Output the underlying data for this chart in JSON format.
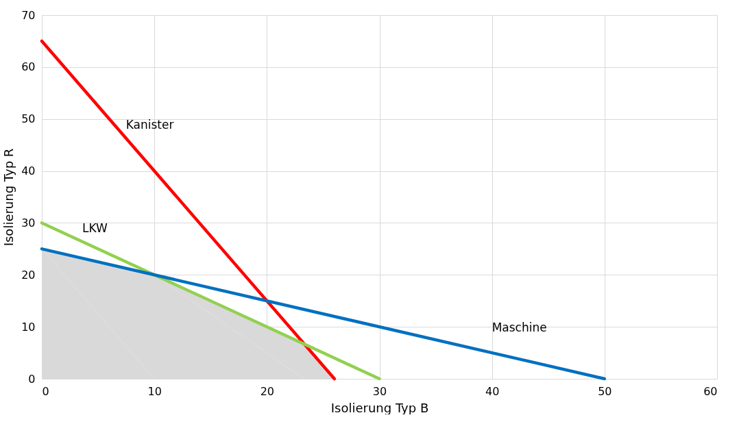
{
  "chart_data": {
    "type": "line",
    "xlabel": "Isolierung Typ B",
    "ylabel": "Isolierung Typ R",
    "xlim": [
      0,
      60
    ],
    "xticks": [
      0,
      10,
      20,
      30,
      40,
      50,
      60
    ],
    "ylim": [
      0,
      70
    ],
    "yticks": [
      0,
      10,
      20,
      30,
      40,
      50,
      60,
      70
    ],
    "grid": true,
    "series": [
      {
        "type": "area",
        "color": "#d9d9d9",
        "x": [
          0,
          10,
          23.3,
          26
        ],
        "values": [
          25,
          20,
          6.7,
          0
        ]
      },
      {
        "name": "Kanister",
        "color": "#ff0000",
        "x": [
          0,
          26
        ],
        "values": [
          65,
          0
        ]
      },
      {
        "name": "LKW",
        "color": "#92d050",
        "x": [
          0,
          30
        ],
        "values": [
          30,
          0
        ]
      },
      {
        "name": "Maschine",
        "color": "#0070c0",
        "x": [
          0,
          50
        ],
        "values": [
          25,
          0
        ]
      }
    ]
  }
}
